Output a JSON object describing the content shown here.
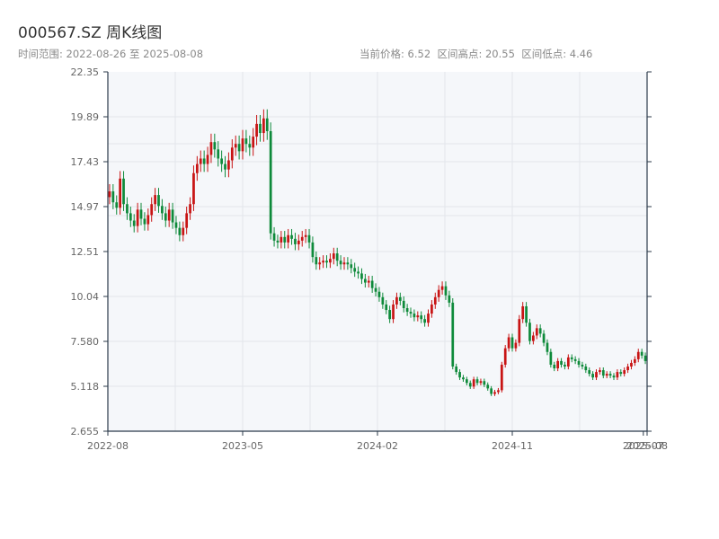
{
  "title": "000567.SZ 周K线图",
  "subtitle": {
    "range": "时间范围: 2022-08-26 至 2025-08-08",
    "current_price": "当前价格: 6.52",
    "high": "区间高点: 20.55",
    "low": "区间低点: 4.46"
  },
  "colors": {
    "up": "#c81414",
    "down": "#0e8a3a",
    "plot_bg": "#f5f7fa",
    "grid": "#e2e6eb",
    "axis": "#2b3a4a"
  },
  "chart_data": {
    "type": "candlestick",
    "title": "000567.SZ 周K线图",
    "ylim": [
      2.655,
      22.35
    ],
    "yticks": [
      "2.655",
      "5.118",
      "7.580",
      "10.04",
      "12.51",
      "14.97",
      "17.43",
      "19.89",
      "22.35"
    ],
    "xticks": [
      "2022-08",
      "2023-05",
      "2024-02",
      "2024-11",
      "2025-07",
      "2025-08"
    ],
    "grid": true,
    "summary": {
      "current": 6.52,
      "high": 20.55,
      "low": 4.46
    },
    "close_series": [
      15.8,
      15.2,
      14.9,
      16.5,
      15.1,
      14.6,
      14.2,
      13.9,
      14.8,
      14.3,
      14.0,
      14.5,
      15.1,
      15.6,
      15.0,
      14.6,
      14.2,
      14.8,
      14.1,
      13.8,
      13.4,
      13.8,
      14.6,
      15.1,
      16.8,
      17.3,
      17.6,
      17.3,
      17.8,
      18.5,
      18.1,
      17.6,
      17.3,
      17.0,
      17.5,
      18.2,
      18.4,
      18.0,
      18.7,
      18.4,
      18.2,
      18.8,
      19.5,
      19.0,
      19.8,
      19.1,
      13.5,
      13.1,
      13.0,
      13.3,
      13.0,
      13.4,
      13.2,
      12.9,
      13.1,
      13.3,
      13.4,
      13.0,
      12.2,
      11.8,
      11.9,
      12.0,
      11.9,
      12.1,
      12.4,
      12.0,
      11.8,
      11.9,
      11.8,
      11.6,
      11.4,
      11.3,
      11.0,
      10.8,
      10.9,
      10.5,
      10.3,
      10.0,
      9.6,
      9.3,
      8.8,
      9.6,
      10.0,
      9.8,
      9.4,
      9.2,
      9.1,
      8.9,
      9.0,
      8.8,
      8.6,
      9.1,
      9.6,
      10.0,
      10.4,
      10.6,
      10.1,
      9.7,
      6.2,
      5.9,
      5.6,
      5.5,
      5.3,
      5.1,
      5.5,
      5.3,
      5.4,
      5.2,
      5.0,
      4.7,
      4.8,
      4.9,
      6.3,
      7.2,
      7.8,
      7.2,
      7.5,
      8.8,
      9.5,
      8.6,
      7.6,
      7.9,
      8.3,
      8.0,
      7.5,
      7.0,
      6.3,
      6.1,
      6.5,
      6.3,
      6.2,
      6.7,
      6.6,
      6.5,
      6.3,
      6.2,
      6.0,
      5.8,
      5.6,
      5.9,
      6.0,
      5.7,
      5.8,
      5.7,
      5.6,
      5.9,
      5.8,
      6.0,
      6.2,
      6.4,
      6.6,
      7.0,
      6.8,
      6.5
    ]
  }
}
